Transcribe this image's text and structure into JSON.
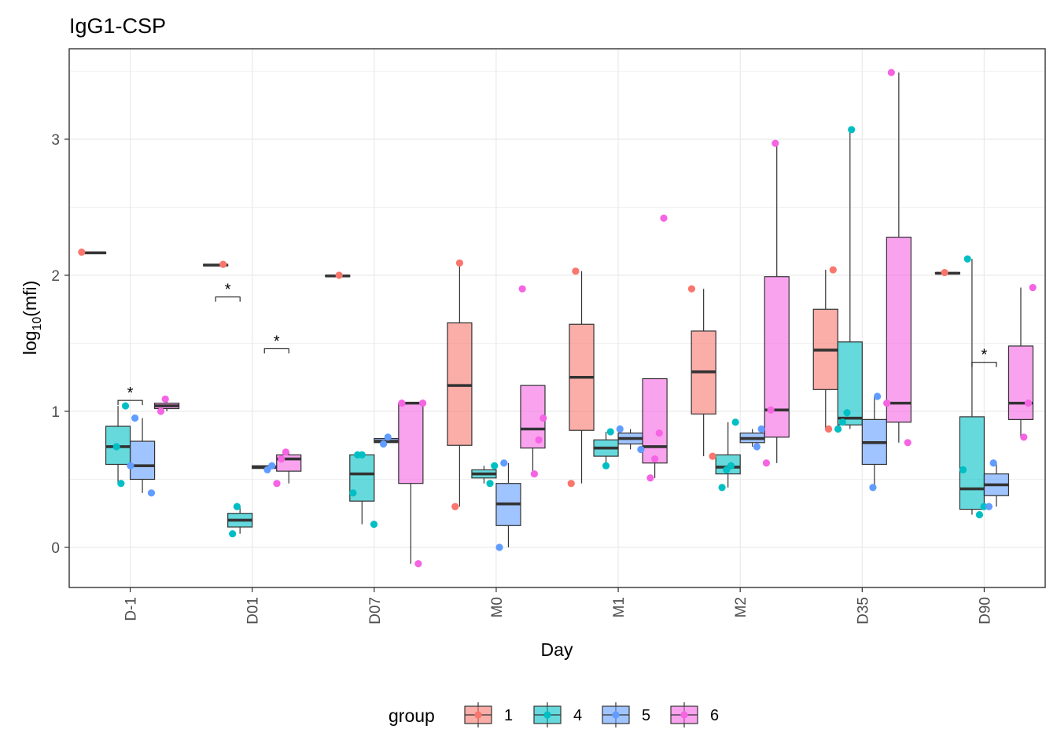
{
  "chart_data": {
    "type": "boxplot",
    "title": "IgG1-CSP",
    "xlabel": "Day",
    "ylabel_base": "log",
    "ylabel_sub": "10",
    "ylabel_arg": "(mfi)",
    "ylim": [
      -0.3,
      3.7
    ],
    "yticks": [
      0,
      1,
      2,
      3
    ],
    "categories": [
      "D-1",
      "D01",
      "D07",
      "M0",
      "M1",
      "M2",
      "D35",
      "D90"
    ],
    "grid": true,
    "legend": {
      "position": "bottom",
      "title": "group",
      "entries": [
        {
          "label": "1",
          "fill": "#F8766D"
        },
        {
          "label": "4",
          "fill": "#00BFC4"
        },
        {
          "label": "5",
          "fill": "#619CFF"
        },
        {
          "label": "6",
          "fill": "#F564E3"
        }
      ]
    },
    "series": [
      {
        "name": "1",
        "color": "#F8766D",
        "boxes": [
          {
            "day": "D-1",
            "q1": 2.16,
            "median": 2.165,
            "q3": 2.17,
            "lo": 2.16,
            "hi": 2.17,
            "points": [
              2.17
            ]
          },
          {
            "day": "D01",
            "q1": 2.07,
            "median": 2.075,
            "q3": 2.08,
            "lo": 2.07,
            "hi": 2.08,
            "points": [
              2.08
            ]
          },
          {
            "day": "D07",
            "q1": 1.99,
            "median": 1.995,
            "q3": 2.0,
            "lo": 1.99,
            "hi": 2.0,
            "points": [
              2.0
            ]
          },
          {
            "day": "M0",
            "q1": 0.75,
            "median": 1.19,
            "q3": 1.65,
            "lo": 0.3,
            "hi": 2.09,
            "points": [
              0.3,
              2.09
            ]
          },
          {
            "day": "M1",
            "q1": 0.86,
            "median": 1.25,
            "q3": 1.64,
            "lo": 0.47,
            "hi": 2.03,
            "points": [
              0.47,
              2.03
            ]
          },
          {
            "day": "M2",
            "q1": 0.98,
            "median": 1.29,
            "q3": 1.59,
            "lo": 0.67,
            "hi": 1.9,
            "points": [
              0.67,
              1.9
            ]
          },
          {
            "day": "D35",
            "q1": 1.16,
            "median": 1.45,
            "q3": 1.75,
            "lo": 0.87,
            "hi": 2.04,
            "points": [
              0.87,
              2.04
            ]
          },
          {
            "day": "D90",
            "q1": 2.01,
            "median": 2.015,
            "q3": 2.02,
            "lo": 2.01,
            "hi": 2.02,
            "points": [
              2.02
            ]
          }
        ]
      },
      {
        "name": "4",
        "color": "#00BFC4",
        "boxes": [
          {
            "day": "D-1",
            "q1": 0.61,
            "median": 0.74,
            "q3": 0.89,
            "lo": 0.47,
            "hi": 1.04,
            "points": [
              0.74,
              0.47,
              1.04
            ]
          },
          {
            "day": "D01",
            "q1": 0.15,
            "median": 0.2,
            "q3": 0.25,
            "lo": 0.1,
            "hi": 0.3,
            "points": [
              0.1,
              0.3
            ]
          },
          {
            "day": "D07",
            "q1": 0.34,
            "median": 0.54,
            "q3": 0.68,
            "lo": 0.17,
            "hi": 0.68,
            "points": [
              0.17,
              0.4,
              0.68,
              0.68
            ]
          },
          {
            "day": "M0",
            "q1": 0.51,
            "median": 0.54,
            "q3": 0.57,
            "lo": 0.47,
            "hi": 0.6,
            "points": [
              0.47,
              0.6
            ]
          },
          {
            "day": "M1",
            "q1": 0.67,
            "median": 0.73,
            "q3": 0.79,
            "lo": 0.6,
            "hi": 0.85,
            "points": [
              0.6,
              0.85
            ]
          },
          {
            "day": "M2",
            "q1": 0.54,
            "median": 0.59,
            "q3": 0.68,
            "lo": 0.44,
            "hi": 0.92,
            "points": [
              0.44,
              0.57,
              0.6,
              0.92
            ]
          },
          {
            "day": "D35",
            "q1": 0.9,
            "median": 0.95,
            "q3": 1.51,
            "lo": 0.87,
            "hi": 3.07,
            "points": [
              0.87,
              0.92,
              0.99,
              3.07
            ]
          },
          {
            "day": "D90",
            "q1": 0.28,
            "median": 0.43,
            "q3": 0.96,
            "lo": 0.24,
            "hi": 2.12,
            "points": [
              0.24,
              0.3,
              0.57,
              2.12
            ]
          }
        ]
      },
      {
        "name": "5",
        "color": "#619CFF",
        "boxes": [
          {
            "day": "D-1",
            "q1": 0.5,
            "median": 0.6,
            "q3": 0.78,
            "lo": 0.4,
            "hi": 0.95,
            "points": [
              0.4,
              0.6,
              0.95
            ]
          },
          {
            "day": "D01",
            "q1": 0.58,
            "median": 0.59,
            "q3": 0.6,
            "lo": 0.57,
            "hi": 0.6,
            "points": [
              0.57,
              0.6
            ]
          },
          {
            "day": "D07",
            "q1": 0.77,
            "median": 0.78,
            "q3": 0.8,
            "lo": 0.76,
            "hi": 0.81,
            "points": [
              0.76,
              0.81
            ]
          },
          {
            "day": "M0",
            "q1": 0.16,
            "median": 0.32,
            "q3": 0.47,
            "lo": 0.0,
            "hi": 0.62,
            "points": [
              0.0,
              0.62
            ]
          },
          {
            "day": "M1",
            "q1": 0.76,
            "median": 0.8,
            "q3": 0.84,
            "lo": 0.72,
            "hi": 0.87,
            "points": [
              0.72,
              0.87
            ]
          },
          {
            "day": "M2",
            "q1": 0.77,
            "median": 0.8,
            "q3": 0.84,
            "lo": 0.74,
            "hi": 0.87,
            "points": [
              0.74,
              0.87
            ]
          },
          {
            "day": "D35",
            "q1": 0.61,
            "median": 0.77,
            "q3": 0.94,
            "lo": 0.44,
            "hi": 1.11,
            "points": [
              0.44,
              1.11
            ]
          },
          {
            "day": "D90",
            "q1": 0.38,
            "median": 0.46,
            "q3": 0.54,
            "lo": 0.3,
            "hi": 0.62,
            "points": [
              0.3,
              0.62
            ]
          }
        ]
      },
      {
        "name": "6",
        "color": "#F564E3",
        "boxes": [
          {
            "day": "D-1",
            "q1": 1.02,
            "median": 1.04,
            "q3": 1.06,
            "lo": 1.0,
            "hi": 1.09,
            "points": [
              1.0,
              1.09
            ]
          },
          {
            "day": "D01",
            "q1": 0.56,
            "median": 0.65,
            "q3": 0.68,
            "lo": 0.47,
            "hi": 0.7,
            "points": [
              0.47,
              0.65,
              0.7
            ]
          },
          {
            "day": "D07",
            "q1": 0.47,
            "median": 1.06,
            "q3": 1.06,
            "lo": -0.12,
            "hi": 1.06,
            "points": [
              -0.12,
              1.06,
              1.06
            ]
          },
          {
            "day": "M0",
            "q1": 0.73,
            "median": 0.87,
            "q3": 1.19,
            "lo": 0.54,
            "hi": 1.19,
            "points": [
              0.54,
              0.79,
              0.95,
              1.9
            ]
          },
          {
            "day": "M1",
            "q1": 0.62,
            "median": 0.74,
            "q3": 1.24,
            "lo": 0.51,
            "hi": 1.24,
            "points": [
              0.51,
              0.65,
              0.84,
              2.42
            ]
          },
          {
            "day": "M2",
            "q1": 0.81,
            "median": 1.01,
            "q3": 1.99,
            "lo": 0.62,
            "hi": 2.97,
            "points": [
              0.62,
              1.01,
              2.97
            ]
          },
          {
            "day": "D35",
            "q1": 0.92,
            "median": 1.06,
            "q3": 2.28,
            "lo": 0.77,
            "hi": 3.49,
            "points": [
              0.77,
              1.06,
              3.49
            ]
          },
          {
            "day": "D90",
            "q1": 0.94,
            "median": 1.06,
            "q3": 1.48,
            "lo": 0.81,
            "hi": 1.91,
            "points": [
              0.81,
              1.06,
              1.91
            ]
          }
        ]
      }
    ],
    "annotations": [
      {
        "text": "*",
        "day": "D-1",
        "from_group": "4",
        "to_group": "5",
        "y": 1.08
      },
      {
        "text": "*",
        "day": "D01",
        "from_group": "1",
        "to_group": "4",
        "y": 1.84
      },
      {
        "text": "*",
        "day": "D01",
        "from_group": "5",
        "to_group": "6",
        "y": 1.46
      },
      {
        "text": "*",
        "day": "D90",
        "from_group": "4",
        "to_group": "5",
        "y": 1.36
      }
    ]
  }
}
